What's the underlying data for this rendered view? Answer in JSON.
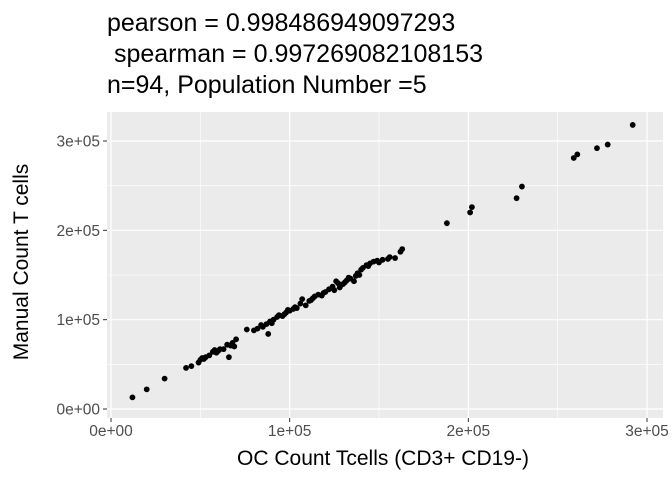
{
  "chart_data": {
    "type": "scatter",
    "title_lines": [
      "pearson = 0.998486949097293",
      " spearman = 0.997269082108153",
      "n=94, Population Number =5"
    ],
    "xlabel": "OC Count Tcells (CD3+ CD19-)",
    "ylabel": "Manual Count T cells",
    "xlim": [
      0,
      300000
    ],
    "ylim": [
      0,
      300000
    ],
    "x_ticks": [
      0,
      100000,
      200000,
      300000
    ],
    "x_tick_labels": [
      "0e+00",
      "1e+05",
      "2e+05",
      "3e+05"
    ],
    "y_ticks": [
      0,
      100000,
      200000,
      300000
    ],
    "y_tick_labels": [
      "0e+00",
      "1e+05",
      "2e+05",
      "3e+05"
    ],
    "grid": true,
    "colors": {
      "panel": "#ebebeb",
      "grid": "#ffffff",
      "point": "#000000"
    },
    "points": [
      [
        12000,
        13000
      ],
      [
        20000,
        22000
      ],
      [
        30000,
        34000
      ],
      [
        42000,
        46000
      ],
      [
        45000,
        48000
      ],
      [
        49000,
        52000
      ],
      [
        50000,
        55000
      ],
      [
        51000,
        57000
      ],
      [
        52000,
        56000
      ],
      [
        55000,
        60000
      ],
      [
        57000,
        64000
      ],
      [
        58000,
        66000
      ],
      [
        59000,
        63000
      ],
      [
        60000,
        65000
      ],
      [
        61000,
        67000
      ],
      [
        63000,
        67000
      ],
      [
        65000,
        72000
      ],
      [
        66000,
        58000
      ],
      [
        68000,
        74000
      ],
      [
        69000,
        70000
      ],
      [
        70000,
        78000
      ],
      [
        80000,
        88000
      ],
      [
        82000,
        90000
      ],
      [
        84000,
        94000
      ],
      [
        85000,
        92000
      ],
      [
        87000,
        95000
      ],
      [
        88000,
        84000
      ],
      [
        89000,
        98000
      ],
      [
        90000,
        96000
      ],
      [
        91000,
        100000
      ],
      [
        93000,
        103000
      ],
      [
        94000,
        105000
      ],
      [
        96000,
        104000
      ],
      [
        98000,
        108000
      ],
      [
        99000,
        111000
      ],
      [
        100000,
        110000
      ],
      [
        102000,
        112000
      ],
      [
        103000,
        114000
      ],
      [
        106000,
        118000
      ],
      [
        107000,
        123000
      ],
      [
        109000,
        116000
      ],
      [
        111000,
        121000
      ],
      [
        112000,
        122000
      ],
      [
        114000,
        126000
      ],
      [
        116000,
        128000
      ],
      [
        118000,
        127000
      ],
      [
        120000,
        131000
      ],
      [
        122000,
        134000
      ],
      [
        124000,
        137000
      ],
      [
        125000,
        133000
      ],
      [
        126000,
        143000
      ],
      [
        127000,
        141000
      ],
      [
        128000,
        136000
      ],
      [
        130000,
        140000
      ],
      [
        131000,
        142000
      ],
      [
        132000,
        144000
      ],
      [
        134000,
        146000
      ],
      [
        136000,
        143000
      ],
      [
        137000,
        149000
      ],
      [
        138000,
        152000
      ],
      [
        140000,
        156000
      ],
      [
        141000,
        158000
      ],
      [
        143000,
        161000
      ],
      [
        145000,
        163000
      ],
      [
        147000,
        165000
      ],
      [
        149000,
        166000
      ],
      [
        152000,
        167000
      ],
      [
        156000,
        170000
      ],
      [
        159000,
        169000
      ],
      [
        162000,
        176000
      ],
      [
        163000,
        179000
      ],
      [
        188000,
        208000
      ],
      [
        201000,
        220000
      ],
      [
        202000,
        226000
      ],
      [
        227000,
        236000
      ],
      [
        230000,
        249000
      ],
      [
        259000,
        281000
      ],
      [
        261000,
        285000
      ],
      [
        272000,
        292000
      ],
      [
        278000,
        296000
      ],
      [
        292000,
        318000
      ],
      [
        53000,
        58000
      ],
      [
        76000,
        89000
      ],
      [
        97000,
        106000
      ],
      [
        104000,
        113000
      ],
      [
        113000,
        124000
      ],
      [
        119000,
        130000
      ],
      [
        129000,
        139000
      ],
      [
        133000,
        147000
      ],
      [
        139000,
        150000
      ],
      [
        144000,
        160000
      ],
      [
        150000,
        164000
      ],
      [
        155000,
        168000
      ],
      [
        67000,
        71000
      ]
    ]
  }
}
